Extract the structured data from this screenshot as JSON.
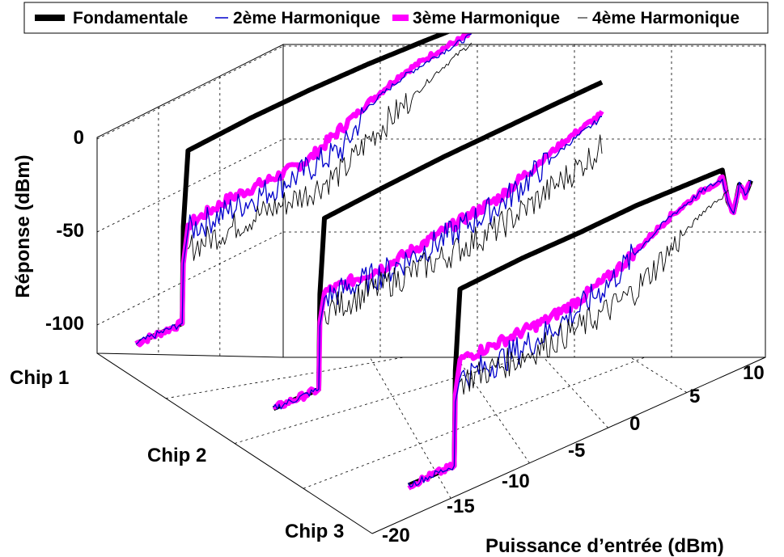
{
  "chart_data": {
    "type": "line",
    "subtype": "3d-waterfall",
    "title": "",
    "xlabel": "Puissance d’entrée (dBm)",
    "ylabel": "Réponse (dBm)",
    "zlabel": "",
    "x_ticks": [
      "-20",
      "-15",
      "-10",
      "-5",
      "0",
      "5",
      "10"
    ],
    "y_ticks": [
      "0",
      "-50",
      "-100"
    ],
    "z_ticks": [
      "Chip 1",
      "Chip 2",
      "Chip 3"
    ],
    "xlim": [
      -20,
      10
    ],
    "ylim": [
      -120,
      15
    ],
    "grid": true,
    "legend_position": "top",
    "legend": [
      {
        "name": "Fondamentale",
        "color": "#000000",
        "style": "thick"
      },
      {
        "name": "2ème Harmonique",
        "color": "#0000cc",
        "style": "thin"
      },
      {
        "name": "3ème Harmonique",
        "color": "#ff00ff",
        "style": "thick"
      },
      {
        "name": "4ème Harmonique",
        "color": "#000000",
        "style": "thin"
      }
    ],
    "chips": [
      {
        "name": "Chip 1",
        "series": [
          {
            "name": "Fondamentale",
            "x": [
              -20,
              -16,
              -15.9,
              -15.5,
              -10,
              -5,
              0,
              5,
              9
            ],
            "y": [
              -110,
              -107,
              -55,
              -15,
              -8,
              -3,
              1,
              4,
              6
            ]
          },
          {
            "name": "2ème Harmonique",
            "x": [
              -20,
              -16,
              -15.9,
              -15.5,
              -10,
              -6,
              -5,
              -2,
              0,
              3,
              6,
              9
            ],
            "y": [
              -110,
              -107,
              -75,
              -58,
              -52,
              -47,
              -45,
              -40,
              -22,
              -12,
              -6,
              -1
            ]
          },
          {
            "name": "3ème Harmonique",
            "x": [
              -20,
              -16,
              -15.9,
              -15.5,
              -12,
              -9,
              -7,
              -5,
              -3,
              0,
              3,
              6,
              9
            ],
            "y": [
              -110,
              -107,
              -75,
              -55,
              -48,
              -45,
              -43,
              -40,
              -32,
              -20,
              -10,
              -4,
              0
            ]
          },
          {
            "name": "4ème Harmonique",
            "x": [
              -15.5,
              -10,
              -5,
              -2,
              0,
              3,
              6,
              9
            ],
            "y": [
              -68,
              -62,
              -58,
              -52,
              -40,
              -28,
              -15,
              -5
            ]
          }
        ]
      },
      {
        "name": "Chip 2",
        "series": [
          {
            "name": "Fondamentale",
            "x": [
              -20,
              -16,
              -15.9,
              -15.5,
              -10,
              -5,
              0,
              5,
              9
            ],
            "y": [
              -108,
              -106,
              -55,
              -15,
              -9,
              -4,
              0,
              4,
              7
            ]
          },
          {
            "name": "2ème Harmonique",
            "x": [
              -20,
              -16,
              -15.9,
              -15.5,
              -10,
              -5,
              0,
              3,
              6,
              9
            ],
            "y": [
              -108,
              -106,
              -72,
              -58,
              -55,
              -48,
              -40,
              -30,
              -20,
              -12
            ]
          },
          {
            "name": "3ème Harmonique",
            "x": [
              -20,
              -16,
              -15.9,
              -15.5,
              -10,
              -5,
              0,
              3,
              6,
              9
            ],
            "y": [
              -108,
              -106,
              -70,
              -55,
              -52,
              -44,
              -36,
              -26,
              -17,
              -10
            ]
          },
          {
            "name": "4ème Harmonique",
            "x": [
              -15.5,
              -10,
              -5,
              0,
              3,
              6,
              9
            ],
            "y": [
              -65,
              -62,
              -58,
              -52,
              -45,
              -37,
              -28
            ]
          }
        ]
      },
      {
        "name": "Chip 3",
        "series": [
          {
            "name": "Fondamentale",
            "x": [
              -20,
              -16,
              -15.9,
              -15.5,
              -10,
              -5,
              0,
              5,
              7.5,
              8,
              8.5,
              9,
              9.5,
              10
            ],
            "y": [
              -108,
              -106,
              -55,
              -12,
              -7,
              -4,
              0,
              2,
              3,
              -15,
              -22,
              -8,
              -15,
              -8
            ]
          },
          {
            "name": "2ème Harmonique",
            "x": [
              -20,
              -16,
              -15.9,
              -15.5,
              -12,
              -8,
              -5,
              -2,
              0,
              3,
              6,
              7.5,
              8,
              8.5,
              9,
              9.5,
              10
            ],
            "y": [
              -108,
              -106,
              -72,
              -60,
              -58,
              -52,
              -45,
              -35,
              -25,
              -12,
              -4,
              -2,
              -15,
              -22,
              -8,
              -15,
              -8
            ]
          },
          {
            "name": "3ème Harmonique",
            "x": [
              -20,
              -16,
              -15.9,
              -15.5,
              -12,
              -8,
              -5,
              -2,
              0,
              3,
              6,
              7.5,
              8,
              8.5,
              9,
              9.5,
              10
            ],
            "y": [
              -108,
              -106,
              -68,
              -50,
              -48,
              -45,
              -40,
              -32,
              -24,
              -12,
              -4,
              -2,
              -15,
              -22,
              -8,
              -15,
              -8
            ]
          },
          {
            "name": "4ème Harmonique",
            "x": [
              -15.5,
              -10,
              -5,
              -2,
              0,
              3,
              6,
              8
            ],
            "y": [
              -62,
              -60,
              -55,
              -50,
              -45,
              -30,
              -15,
              -10
            ]
          }
        ]
      }
    ]
  }
}
